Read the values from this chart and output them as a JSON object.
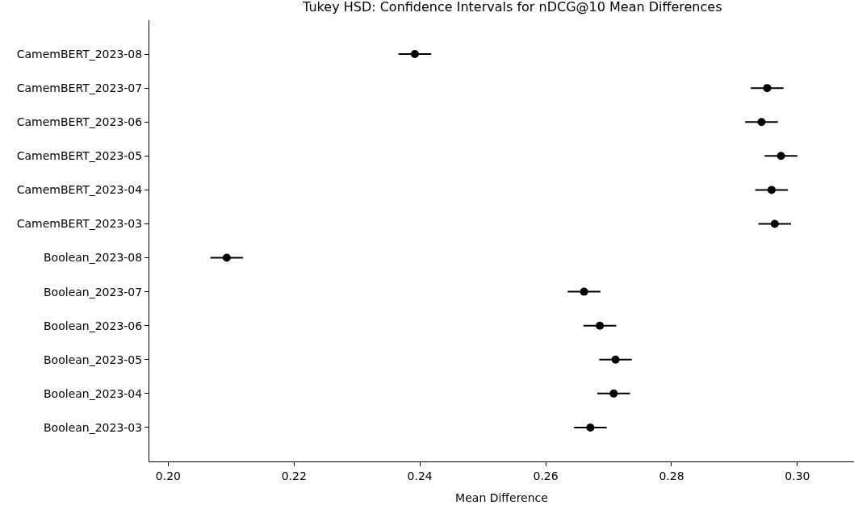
{
  "chart_data": {
    "type": "scatter",
    "orientation": "horizontal",
    "title": "Tukey HSD: Confidence Intervals for nDCG@10 Mean Differences",
    "xlabel": "Mean Difference",
    "categories": [
      "CamemBERT_2023-08",
      "CamemBERT_2023-07",
      "CamemBERT_2023-06",
      "CamemBERT_2023-05",
      "CamemBERT_2023-04",
      "CamemBERT_2023-03",
      "Boolean_2023-08",
      "Boolean_2023-07",
      "Boolean_2023-06",
      "Boolean_2023-05",
      "Boolean_2023-04",
      "Boolean_2023-03"
    ],
    "series": [
      {
        "color": "#000000",
        "values": [
          0.2392,
          0.2952,
          0.2943,
          0.2974,
          0.2959,
          0.2964,
          0.2093,
          0.2661,
          0.2686,
          0.2711,
          0.2708,
          0.2671
        ],
        "errors": [
          0.0026,
          0.0026,
          0.0026,
          0.0026,
          0.0026,
          0.0026,
          0.0026,
          0.0026,
          0.0026,
          0.0026,
          0.0026,
          0.0026
        ]
      }
    ],
    "xlim": [
      0.197,
      0.309
    ],
    "xticks": [
      {
        "value": 0.2,
        "label": "0.20"
      },
      {
        "value": 0.22,
        "label": "0.22"
      },
      {
        "value": 0.24,
        "label": "0.24"
      },
      {
        "value": 0.26,
        "label": "0.26"
      },
      {
        "value": 0.28,
        "label": "0.28"
      },
      {
        "value": 0.3,
        "label": "0.30"
      }
    ],
    "marker": "circle"
  }
}
